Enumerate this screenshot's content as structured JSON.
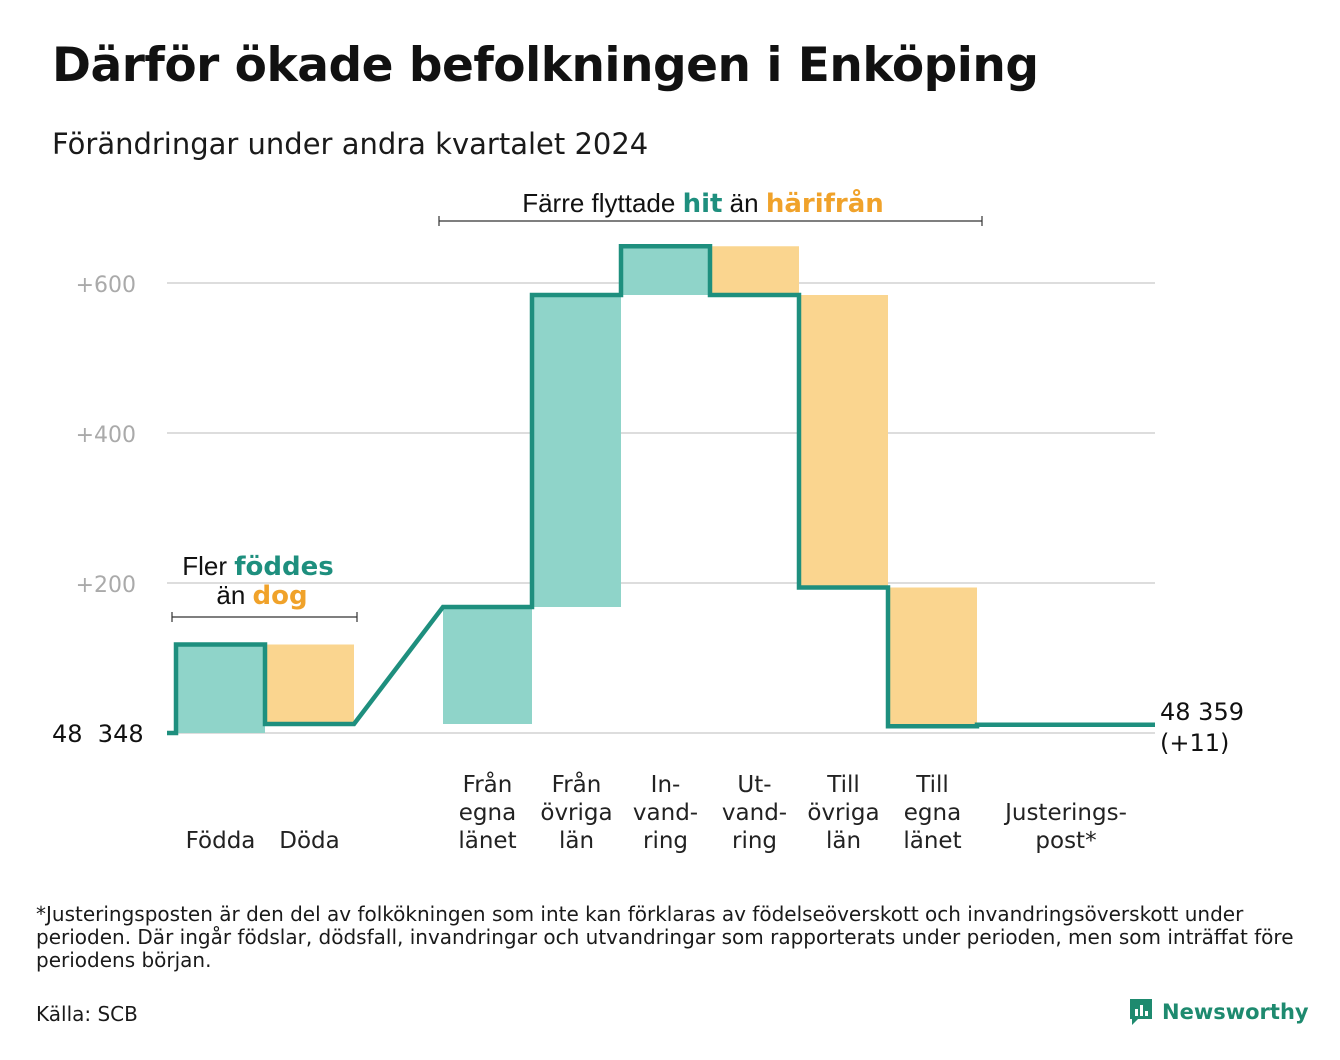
{
  "title": "Därför ökade befolkningen i Enköping",
  "subtitle": "Förändringar under andra kvartalet 2024",
  "footnote": "*Justeringsposten är den del av folkökningen som inte kan förklaras av födelseöverskott och invandringsöverskott under perioden. Där ingår födslar, dödsfall, invandringar och utvandringar som rapporterats under perioden, men som inträffat före periodens början.",
  "source": "Källa: SCB",
  "brand": "Newsworthy",
  "colors": {
    "increase": "#8fd4c9",
    "decrease": "#fad58f",
    "line": "#1e8f7e",
    "grid": "#dddddd",
    "tick": "#aaaaaa",
    "teal_text": "#1e8f7e",
    "orange_text": "#f0a22a"
  },
  "annotations": {
    "births": {
      "line1_prefix": "Fler ",
      "line1_highlight": "föddes",
      "line2_prefix": "än ",
      "line2_highlight": "dog"
    },
    "migration": {
      "prefix": "Färre flyttade ",
      "highlight1": "hit",
      "middle": " än ",
      "highlight2": "härifrån"
    }
  },
  "chart_data": {
    "type": "waterfall",
    "title": "Därför ökade befolkningen i Enköping",
    "subtitle": "Förändringar under andra kvartalet 2024",
    "start_label": "48 348",
    "end_label_1": "48 359",
    "end_label_2": "(+11)",
    "start_value": 48348,
    "end_value": 48359,
    "total_change": 11,
    "y_ticks": [
      "+200",
      "+400",
      "+600"
    ],
    "y_tick_values": [
      200,
      400,
      600
    ],
    "ylim": [
      0,
      650
    ],
    "grid": true,
    "categories": [
      {
        "label": [
          "Födda"
        ],
        "value": 118,
        "kind": "increase"
      },
      {
        "label": [
          "Döda"
        ],
        "value": -106,
        "kind": "decrease"
      },
      {
        "label": [
          "Från",
          "egna",
          "länet"
        ],
        "value": 156,
        "kind": "increase"
      },
      {
        "label": [
          "Från",
          "övriga",
          "län"
        ],
        "value": 416,
        "kind": "increase"
      },
      {
        "label": [
          "In-",
          "vand-",
          "ring"
        ],
        "value": 65,
        "kind": "increase"
      },
      {
        "label": [
          "Ut-",
          "vand-",
          "ring"
        ],
        "value": -65,
        "kind": "decrease"
      },
      {
        "label": [
          "Till",
          "övriga",
          "län"
        ],
        "value": -390,
        "kind": "decrease"
      },
      {
        "label": [
          "Till",
          "egna",
          "länet"
        ],
        "value": -185,
        "kind": "decrease"
      },
      {
        "label": [
          "Justerings-",
          "post*"
        ],
        "value": 2,
        "kind": "adjustment"
      }
    ]
  }
}
